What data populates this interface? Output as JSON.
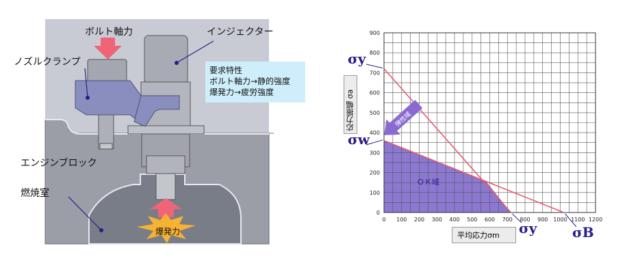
{
  "left_diagram": {
    "labels": {
      "bolt_force": "ボルト軸力",
      "injector": "インジェクター",
      "nozzle_clamp": "ノズルクランプ",
      "engine_block": "エンジンブロック",
      "combustion_chamber": "燃焼室",
      "explosion_force": "爆発力"
    },
    "requirements": {
      "title": "要求特性",
      "line1": "ボルト軸力→静的強度",
      "line2": "爆発力→疲労強度"
    },
    "colors": {
      "background": "#c9cbd4",
      "block": "#9a9ca6",
      "chamber": "#767a84",
      "clamp": "#8a8ebc",
      "arrow": "#f06478",
      "burst": "#f6b233",
      "info_box": "#cfeefb"
    }
  },
  "chart_data": {
    "type": "line",
    "xlabel": "平均応力σm",
    "ylabel": "応力振幅 σa",
    "xlim": [
      0,
      1200
    ],
    "ylim": [
      0,
      900
    ],
    "x_ticks": [
      "0",
      "100",
      "200",
      "300",
      "400",
      "500",
      "600",
      "700",
      "800",
      "900",
      "1000",
      "1100",
      "1200"
    ],
    "y_ticks": [
      "0",
      "100",
      "200",
      "300",
      "400",
      "500",
      "600",
      "700",
      "800",
      "900"
    ],
    "grid": true,
    "series": [
      {
        "values": [
          [
            0,
            720
          ],
          [
            720,
            0
          ]
        ],
        "color": "#e85a6e"
      },
      {
        "values": [
          [
            0,
            360
          ],
          [
            1020,
            0
          ]
        ],
        "color": "#e85a6e"
      }
    ],
    "ok_region": [
      [
        0,
        360
      ],
      [
        580,
        155
      ],
      [
        720,
        0
      ],
      [
        0,
        0
      ]
    ],
    "ok_label": "ＯＫ域",
    "elastic_label": "弾性域",
    "annotations": {
      "sigma_y_top": "σy",
      "sigma_w": "σw",
      "sigma_y_bottom": "σy",
      "sigma_b": "σB"
    },
    "colors": {
      "ok_fill": "#8c78d0",
      "arrow_fill": "#8a6ad0",
      "label_box_bg": "#ececec"
    }
  }
}
